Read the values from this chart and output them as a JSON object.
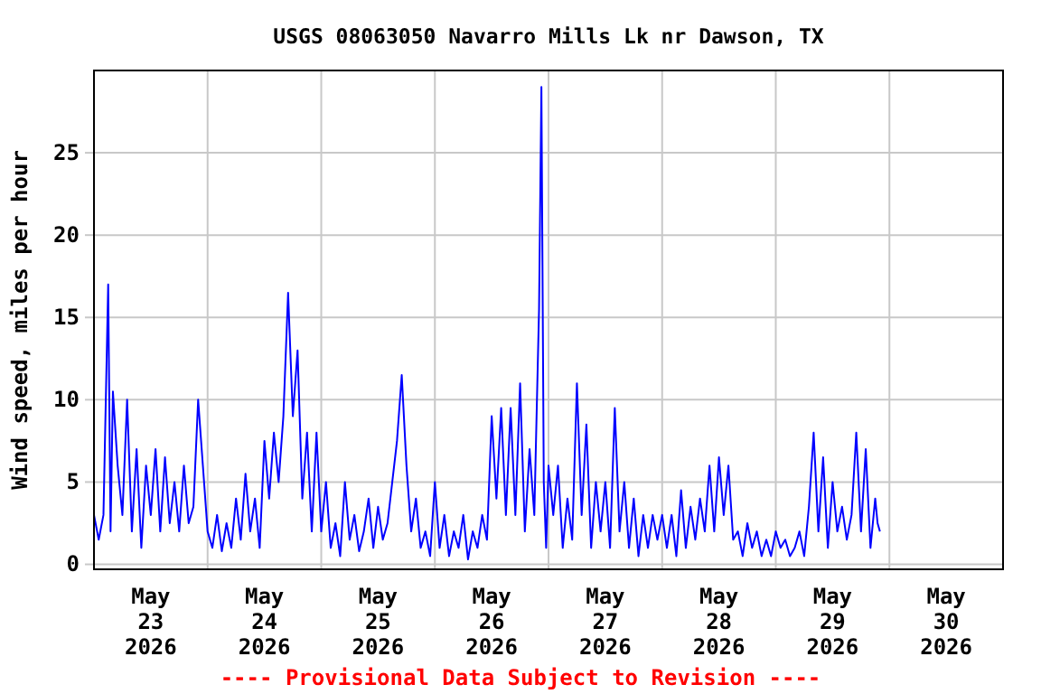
{
  "chart_data": {
    "type": "line",
    "title": "USGS 08063050 Navarro Mills Lk nr Dawson, TX",
    "ylabel": "Wind speed, miles per hour",
    "annotations": [
      "---- Provisional Data Subject to Revision ----"
    ],
    "xlim": [
      "2026-05-23T00:00",
      "2026-05-31T00:00"
    ],
    "xticks": [
      {
        "value": "2026-05-23T12:00",
        "label": "May\n23\n2026"
      },
      {
        "value": "2026-05-24T12:00",
        "label": "May\n24\n2026"
      },
      {
        "value": "2026-05-25T12:00",
        "label": "May\n25\n2026"
      },
      {
        "value": "2026-05-26T12:00",
        "label": "May\n26\n2026"
      },
      {
        "value": "2026-05-27T12:00",
        "label": "May\n27\n2026"
      },
      {
        "value": "2026-05-28T12:00",
        "label": "May\n28\n2026"
      },
      {
        "value": "2026-05-29T12:00",
        "label": "May\n29\n2026"
      },
      {
        "value": "2026-05-30T12:00",
        "label": "May\n30\n2026"
      },
      {
        "value": "2026-05-24T00:00",
        "label": null
      },
      {
        "value": "2026-05-25T00:00",
        "label": null
      },
      {
        "value": "2026-05-26T00:00",
        "label": null
      },
      {
        "value": "2026-05-27T00:00",
        "label": null
      },
      {
        "value": "2026-05-28T00:00",
        "label": null
      },
      {
        "value": "2026-05-29T00:00",
        "label": null
      },
      {
        "value": "2026-05-30T00:00",
        "label": null
      }
    ],
    "ylim": [
      -0.3,
      30
    ],
    "yticks": [
      0,
      5,
      10,
      15,
      20,
      25
    ],
    "grid": true,
    "marker": "none",
    "line_style": "solid",
    "x": [
      "2026-05-23T00:00",
      "2026-05-23T01:00",
      "2026-05-23T02:00",
      "2026-05-23T03:00",
      "2026-05-23T03:30",
      "2026-05-23T04:00",
      "2026-05-23T05:00",
      "2026-05-23T06:00",
      "2026-05-23T07:00",
      "2026-05-23T08:00",
      "2026-05-23T09:00",
      "2026-05-23T10:00",
      "2026-05-23T11:00",
      "2026-05-23T12:00",
      "2026-05-23T13:00",
      "2026-05-23T14:00",
      "2026-05-23T15:00",
      "2026-05-23T16:00",
      "2026-05-23T17:00",
      "2026-05-23T18:00",
      "2026-05-23T19:00",
      "2026-05-23T20:00",
      "2026-05-23T21:00",
      "2026-05-23T22:00",
      "2026-05-23T23:00",
      "2026-05-24T00:00",
      "2026-05-24T01:00",
      "2026-05-24T02:00",
      "2026-05-24T03:00",
      "2026-05-24T04:00",
      "2026-05-24T05:00",
      "2026-05-24T06:00",
      "2026-05-24T07:00",
      "2026-05-24T08:00",
      "2026-05-24T09:00",
      "2026-05-24T10:00",
      "2026-05-24T11:00",
      "2026-05-24T12:00",
      "2026-05-24T13:00",
      "2026-05-24T14:00",
      "2026-05-24T15:00",
      "2026-05-24T16:00",
      "2026-05-24T17:00",
      "2026-05-24T18:00",
      "2026-05-24T19:00",
      "2026-05-24T20:00",
      "2026-05-24T21:00",
      "2026-05-24T22:00",
      "2026-05-24T23:00",
      "2026-05-25T00:00",
      "2026-05-25T01:00",
      "2026-05-25T02:00",
      "2026-05-25T03:00",
      "2026-05-25T04:00",
      "2026-05-25T05:00",
      "2026-05-25T06:00",
      "2026-05-25T07:00",
      "2026-05-25T08:00",
      "2026-05-25T09:00",
      "2026-05-25T10:00",
      "2026-05-25T11:00",
      "2026-05-25T12:00",
      "2026-05-25T13:00",
      "2026-05-25T14:00",
      "2026-05-25T15:00",
      "2026-05-25T16:00",
      "2026-05-25T17:00",
      "2026-05-25T18:00",
      "2026-05-25T19:00",
      "2026-05-25T20:00",
      "2026-05-25T21:00",
      "2026-05-25T22:00",
      "2026-05-25T23:00",
      "2026-05-26T00:00",
      "2026-05-26T01:00",
      "2026-05-26T02:00",
      "2026-05-26T03:00",
      "2026-05-26T04:00",
      "2026-05-26T05:00",
      "2026-05-26T06:00",
      "2026-05-26T07:00",
      "2026-05-26T08:00",
      "2026-05-26T09:00",
      "2026-05-26T10:00",
      "2026-05-26T11:00",
      "2026-05-26T12:00",
      "2026-05-26T13:00",
      "2026-05-26T14:00",
      "2026-05-26T15:00",
      "2026-05-26T16:00",
      "2026-05-26T17:00",
      "2026-05-26T18:00",
      "2026-05-26T19:00",
      "2026-05-26T20:00",
      "2026-05-26T21:00",
      "2026-05-26T22:00",
      "2026-05-26T22:30",
      "2026-05-26T23:00",
      "2026-05-26T23:30",
      "2026-05-27T00:00",
      "2026-05-27T01:00",
      "2026-05-27T02:00",
      "2026-05-27T03:00",
      "2026-05-27T04:00",
      "2026-05-27T05:00",
      "2026-05-27T06:00",
      "2026-05-27T07:00",
      "2026-05-27T08:00",
      "2026-05-27T09:00",
      "2026-05-27T10:00",
      "2026-05-27T11:00",
      "2026-05-27T12:00",
      "2026-05-27T13:00",
      "2026-05-27T14:00",
      "2026-05-27T15:00",
      "2026-05-27T16:00",
      "2026-05-27T17:00",
      "2026-05-27T18:00",
      "2026-05-27T19:00",
      "2026-05-27T20:00",
      "2026-05-27T21:00",
      "2026-05-27T22:00",
      "2026-05-27T23:00",
      "2026-05-28T00:00",
      "2026-05-28T01:00",
      "2026-05-28T02:00",
      "2026-05-28T03:00",
      "2026-05-28T04:00",
      "2026-05-28T05:00",
      "2026-05-28T06:00",
      "2026-05-28T07:00",
      "2026-05-28T08:00",
      "2026-05-28T09:00",
      "2026-05-28T10:00",
      "2026-05-28T11:00",
      "2026-05-28T12:00",
      "2026-05-28T13:00",
      "2026-05-28T14:00",
      "2026-05-28T15:00",
      "2026-05-28T16:00",
      "2026-05-28T17:00",
      "2026-05-28T18:00",
      "2026-05-28T19:00",
      "2026-05-28T20:00",
      "2026-05-28T21:00",
      "2026-05-28T22:00",
      "2026-05-28T23:00",
      "2026-05-29T00:00",
      "2026-05-29T01:00",
      "2026-05-29T02:00",
      "2026-05-29T03:00",
      "2026-05-29T04:00",
      "2026-05-29T05:00",
      "2026-05-29T06:00",
      "2026-05-29T07:00",
      "2026-05-29T08:00",
      "2026-05-29T09:00",
      "2026-05-29T10:00",
      "2026-05-29T11:00",
      "2026-05-29T12:00",
      "2026-05-29T13:00",
      "2026-05-29T14:00",
      "2026-05-29T15:00",
      "2026-05-29T16:00",
      "2026-05-29T17:00",
      "2026-05-29T18:00",
      "2026-05-29T19:00",
      "2026-05-29T20:00",
      "2026-05-29T21:00",
      "2026-05-29T21:30",
      "2026-05-29T22:00"
    ],
    "series": [
      {
        "color": "#0000ff",
        "values": [
          3,
          1.5,
          3,
          17,
          2,
          10.5,
          6,
          3,
          10,
          2,
          7,
          1,
          6,
          3,
          7,
          2,
          6.5,
          2.5,
          5,
          2,
          6,
          2.5,
          3.5,
          10,
          6,
          2,
          1,
          3,
          0.8,
          2.5,
          1,
          4,
          1.5,
          5.5,
          2,
          4,
          1,
          7.5,
          4,
          8,
          5,
          9,
          16.5,
          9,
          13,
          4,
          8,
          2,
          8,
          2,
          5,
          1,
          2.5,
          0.5,
          5,
          1.5,
          3,
          0.8,
          2,
          4,
          1,
          3.5,
          1.5,
          2.5,
          5,
          7.5,
          11.5,
          6,
          2,
          4,
          1,
          2,
          0.5,
          5,
          1,
          3,
          0.5,
          2,
          1,
          3,
          0.3,
          2,
          1,
          3,
          1.5,
          9,
          4,
          9.5,
          3,
          9.5,
          3,
          11,
          2,
          7,
          3,
          15.5,
          29,
          5,
          1,
          6,
          3,
          6,
          1,
          4,
          1.5,
          11,
          3,
          8.5,
          1,
          5,
          2,
          5,
          1,
          9.5,
          2,
          5,
          1,
          4,
          0.5,
          3,
          1,
          3,
          1.5,
          3,
          1,
          3,
          0.5,
          4.5,
          1,
          3.5,
          1.5,
          4,
          2,
          6,
          2,
          6.5,
          3,
          6,
          1.5,
          2,
          0.5,
          2.5,
          1,
          2,
          0.5,
          1.5,
          0.5,
          2,
          1,
          1.5,
          0.5,
          1,
          2,
          0.5,
          3.5,
          8,
          2,
          6.5,
          1,
          5,
          2,
          3.5,
          1.5,
          3,
          8,
          2,
          7,
          1,
          4,
          2.5,
          2
        ]
      }
    ]
  }
}
